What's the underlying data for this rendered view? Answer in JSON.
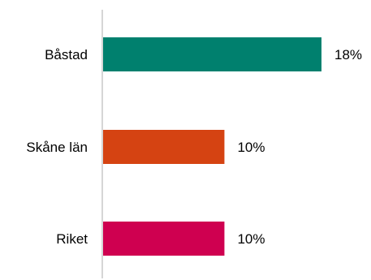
{
  "chart_data": {
    "type": "bar",
    "orientation": "horizontal",
    "title": "",
    "xlabel": "",
    "ylabel": "",
    "categories": [
      "Båstad",
      "Skåne län",
      "Riket"
    ],
    "values": [
      18,
      10,
      10
    ],
    "value_labels": [
      "18%",
      "10%",
      "10%"
    ],
    "xlim": [
      0,
      20
    ],
    "colors": [
      "#00806e",
      "#d54312",
      "#cf0050"
    ],
    "axis_color": "#c8c8c8",
    "grid": false,
    "legend": "none"
  }
}
